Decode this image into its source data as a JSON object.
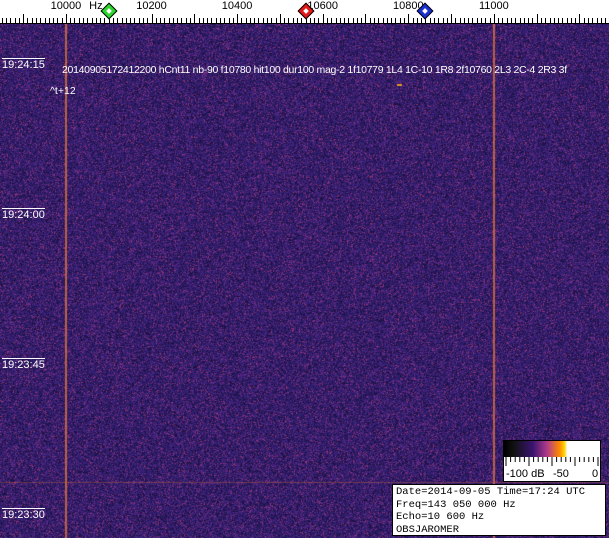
{
  "chart_data": {
    "type": "heatmap",
    "x_unit": "Hz",
    "x_ticks": [
      10000,
      10200,
      10400,
      10600,
      10800,
      11000
    ],
    "x_range": [
      9846,
      11269
    ],
    "y_ticks": [
      "19:24:15",
      "19:24:00",
      "19:23:45",
      "19:23:30"
    ],
    "carrier_lines_hz": [
      10000,
      11000
    ],
    "markers": [
      {
        "freq_hz": 10100,
        "color": "#2fd52f"
      },
      {
        "freq_hz": 10560,
        "color": "#e01818"
      },
      {
        "freq_hz": 10840,
        "color": "#1a2fd0"
      }
    ],
    "colorbar": {
      "labels": [
        "-100 dB",
        "-50",
        "0"
      ],
      "range_db": [
        -100,
        0
      ]
    },
    "background_color": "#2c1a6a"
  },
  "axis": {
    "unit": "Hz"
  },
  "detection": {
    "text": "20140905172412200 hCnt11 nb-90 f10780 hit100 dur100 mag-2 1f10779 1L4 1C-10 1R8 2f10760 2L3 2C-4 2R3 3f",
    "offset": "^t+12"
  },
  "info": {
    "date": "Date=2014-09-05 Time=17:24 UTC",
    "freq": "Freq=143 050 000 Hz",
    "echo": "Echo=10 600 Hz",
    "observer": "OBSJAROMER"
  }
}
